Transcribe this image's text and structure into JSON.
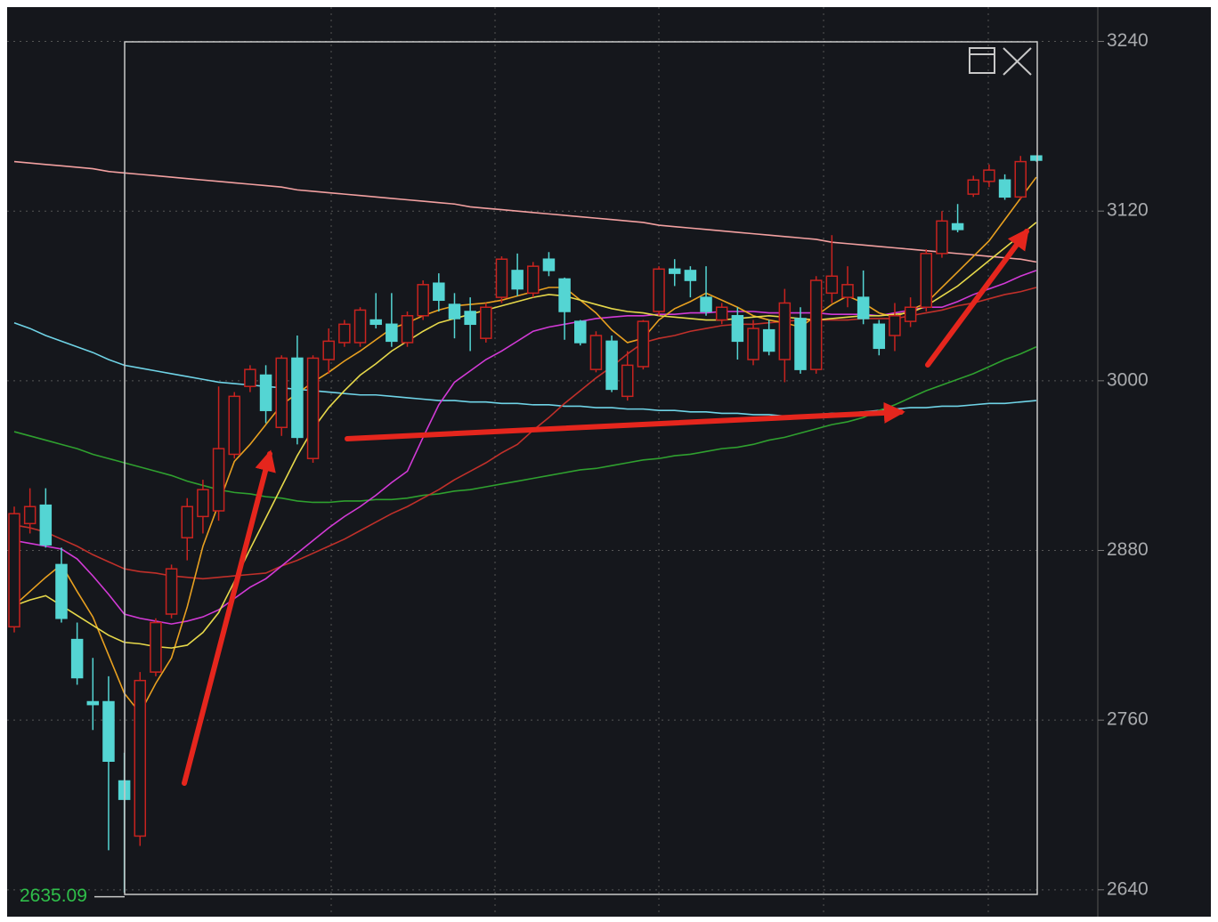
{
  "chart_data": {
    "type": "candlestick",
    "ylim": [
      2621,
      3263
    ],
    "yticks": [
      2640,
      2760,
      2880,
      3000,
      3120,
      3240
    ],
    "grid": true,
    "up_color": "#c8231f",
    "down_color": "#54d5d3",
    "min_marker": 2635.09,
    "open": [
      2826,
      2899,
      2912,
      2870,
      2817,
      2773,
      2773,
      2717,
      2678,
      2794,
      2835,
      2889,
      2904,
      2908,
      2948,
      2996,
      3004,
      2967,
      3016,
      2945,
      3015,
      3027,
      3027,
      3043,
      3040,
      3027,
      3046,
      3069,
      3054,
      3049,
      3030,
      3059,
      3078,
      3062,
      3086,
      3072,
      3042,
      3008,
      3028,
      2989,
      3010,
      3049,
      3079,
      3078,
      3059,
      3043,
      3046,
      3015,
      3036,
      3015,
      3044,
      3008,
      3062,
      3059,
      3059,
      3040,
      3032,
      3042,
      3052,
      3090,
      3111,
      3132,
      3141,
      3142,
      3130,
      3159
    ],
    "high": [
      2911,
      2924,
      2924,
      2882,
      2829,
      2804,
      2791,
      2737,
      2794,
      2832,
      2870,
      2917,
      2930,
      2996,
      2992,
      3011,
      3011,
      3018,
      3032,
      3018,
      3037,
      3043,
      3052,
      3062,
      3062,
      3049,
      3071,
      3076,
      3062,
      3059,
      3055,
      3088,
      3090,
      3084,
      3091,
      3073,
      3043,
      3035,
      3032,
      3021,
      3043,
      3081,
      3086,
      3081,
      3081,
      3055,
      3052,
      3043,
      3043,
      3065,
      3052,
      3074,
      3103,
      3081,
      3078,
      3043,
      3055,
      3059,
      3093,
      3120,
      3125,
      3145,
      3153,
      3146,
      3159,
      3159
    ],
    "low": [
      2822,
      2892,
      2882,
      2829,
      2785,
      2753,
      2668,
      2638,
      2671,
      2791,
      2832,
      2873,
      2892,
      2901,
      2945,
      2992,
      2970,
      2961,
      2955,
      2942,
      3005,
      3024,
      3024,
      3037,
      3024,
      3024,
      3043,
      3049,
      3030,
      3021,
      3027,
      3055,
      3060,
      3059,
      3074,
      3029,
      3025,
      3006,
      2992,
      2986,
      3008,
      3046,
      3067,
      3059,
      3046,
      3040,
      3015,
      3011,
      3018,
      2999,
      3005,
      3005,
      3055,
      3052,
      3040,
      3018,
      3021,
      3038,
      3049,
      3087,
      3105,
      3130,
      3137,
      3128,
      3128,
      3155
    ],
    "close": [
      2906,
      2911,
      2884,
      2832,
      2790,
      2771,
      2731,
      2704,
      2788,
      2829,
      2867,
      2911,
      2923,
      2952,
      2989,
      3008,
      2979,
      3016,
      2960,
      3016,
      3028,
      3040,
      3050,
      3040,
      3028,
      3046,
      3068,
      3057,
      3044,
      3040,
      3052,
      3086,
      3065,
      3081,
      3078,
      3049,
      3027,
      3032,
      2994,
      3011,
      3042,
      3079,
      3076,
      3071,
      3049,
      3052,
      3028,
      3037,
      3021,
      3055,
      3008,
      3071,
      3074,
      3068,
      3044,
      3023,
      3046,
      3052,
      3090,
      3113,
      3107,
      3142,
      3149,
      3130,
      3155,
      3156
    ],
    "series": [
      {
        "color": "#f2a0a0",
        "values": [
          3155,
          3154,
          3153,
          3152,
          3151,
          3150,
          3148,
          3147,
          3146,
          3145,
          3144,
          3143,
          3142,
          3141,
          3140,
          3139,
          3138,
          3137,
          3135,
          3134,
          3133,
          3132,
          3131,
          3130,
          3129,
          3128,
          3127,
          3126,
          3125,
          3123,
          3122,
          3121,
          3120,
          3119,
          3118,
          3117,
          3116,
          3115,
          3114,
          3113,
          3112,
          3110,
          3109,
          3108,
          3107,
          3106,
          3105,
          3104,
          3103,
          3102,
          3101,
          3100,
          3098,
          3097,
          3096,
          3095,
          3094,
          3093,
          3092,
          3091,
          3090,
          3089,
          3088,
          3087,
          3086,
          3084
        ]
      },
      {
        "color": "#6fd3e6",
        "values": [
          3041,
          3037,
          3032,
          3028,
          3024,
          3020,
          3015,
          3011,
          3009,
          3007,
          3005,
          3003,
          3001,
          2999,
          2998,
          2997,
          2996,
          2995,
          2994,
          2993,
          2992,
          2991,
          2990,
          2990,
          2989,
          2988,
          2987,
          2986,
          2986,
          2985,
          2985,
          2984,
          2984,
          2983,
          2983,
          2982,
          2982,
          2981,
          2981,
          2980,
          2980,
          2979,
          2979,
          2978,
          2978,
          2977,
          2977,
          2976,
          2976,
          2975,
          2975,
          2976,
          2977,
          2977,
          2978,
          2979,
          2980,
          2981,
          2981,
          2982,
          2982,
          2983,
          2984,
          2984,
          2985,
          2986
        ]
      },
      {
        "color": "#2fa02f",
        "values": [
          2964,
          2961,
          2958,
          2955,
          2952,
          2948,
          2945,
          2942,
          2939,
          2936,
          2933,
          2929,
          2926,
          2923,
          2921,
          2920,
          2918,
          2917,
          2915,
          2914,
          2914,
          2915,
          2915,
          2916,
          2916,
          2917,
          2919,
          2920,
          2922,
          2923,
          2925,
          2927,
          2929,
          2931,
          2933,
          2935,
          2937,
          2938,
          2940,
          2942,
          2944,
          2945,
          2947,
          2948,
          2950,
          2952,
          2953,
          2955,
          2958,
          2960,
          2963,
          2966,
          2969,
          2971,
          2974,
          2979,
          2983,
          2988,
          2993,
          2997,
          3001,
          3005,
          3010,
          3015,
          3019,
          3024
        ]
      },
      {
        "color": "#c0302a",
        "values": [
          2898,
          2896,
          2893,
          2888,
          2883,
          2877,
          2872,
          2867,
          2865,
          2864,
          2862,
          2861,
          2860,
          2861,
          2862,
          2863,
          2864,
          2869,
          2873,
          2878,
          2883,
          2888,
          2894,
          2900,
          2906,
          2911,
          2917,
          2923,
          2930,
          2936,
          2942,
          2949,
          2955,
          2965,
          2974,
          2984,
          2993,
          3002,
          3010,
          3019,
          3027,
          3030,
          3032,
          3035,
          3037,
          3039,
          3040,
          3040,
          3041,
          3042,
          3043,
          3043,
          3043,
          3043,
          3044,
          3044,
          3044,
          3046,
          3048,
          3050,
          3053,
          3055,
          3058,
          3061,
          3063,
          3066
        ]
      },
      {
        "color": "#d23ad6",
        "values": [
          2887,
          2885,
          2883,
          2881,
          2874,
          2862,
          2849,
          2835,
          2832,
          2830,
          2828,
          2830,
          2833,
          2838,
          2846,
          2854,
          2860,
          2869,
          2878,
          2887,
          2896,
          2904,
          2911,
          2919,
          2928,
          2936,
          2960,
          2983,
          2999,
          3007,
          3015,
          3021,
          3028,
          3035,
          3038,
          3040,
          3042,
          3044,
          3045,
          3046,
          3046,
          3047,
          3047,
          3048,
          3048,
          3049,
          3049,
          3049,
          3048,
          3048,
          3048,
          3048,
          3047,
          3047,
          3047,
          3046,
          3048,
          3050,
          3052,
          3052,
          3056,
          3061,
          3065,
          3069,
          3074,
          3078
        ]
      },
      {
        "color": "#e8a020",
        "values": [
          2841,
          2851,
          2861,
          2870,
          2851,
          2833,
          2806,
          2779,
          2765,
          2786,
          2804,
          2840,
          2883,
          2913,
          2943,
          2955,
          2969,
          2983,
          2991,
          2999,
          3006,
          3014,
          3021,
          3029,
          3037,
          3041,
          3046,
          3050,
          3053,
          3054,
          3055,
          3057,
          3060,
          3063,
          3066,
          3066,
          3057,
          3048,
          3036,
          3027,
          3030,
          3043,
          3051,
          3056,
          3062,
          3057,
          3052,
          3046,
          3043,
          3041,
          3038,
          3046,
          3054,
          3060,
          3055,
          3048,
          3045,
          3050,
          3055,
          3066,
          3077,
          3088,
          3099,
          3114,
          3129,
          3144
        ]
      },
      {
        "color": "#e6d84a",
        "values": [
          2841,
          2845,
          2848,
          2841,
          2834,
          2827,
          2820,
          2815,
          2814,
          2812,
          2811,
          2813,
          2822,
          2836,
          2858,
          2881,
          2903,
          2925,
          2947,
          2966,
          2981,
          2993,
          3004,
          3012,
          3021,
          3028,
          3035,
          3041,
          3044,
          3047,
          3050,
          3053,
          3056,
          3059,
          3061,
          3060,
          3057,
          3054,
          3051,
          3049,
          3048,
          3046,
          3045,
          3044,
          3043,
          3043,
          3044,
          3045,
          3046,
          3045,
          3044,
          3043,
          3044,
          3045,
          3046,
          3046,
          3047,
          3048,
          3053,
          3060,
          3067,
          3076,
          3085,
          3094,
          3103,
          3112
        ]
      }
    ]
  }
}
